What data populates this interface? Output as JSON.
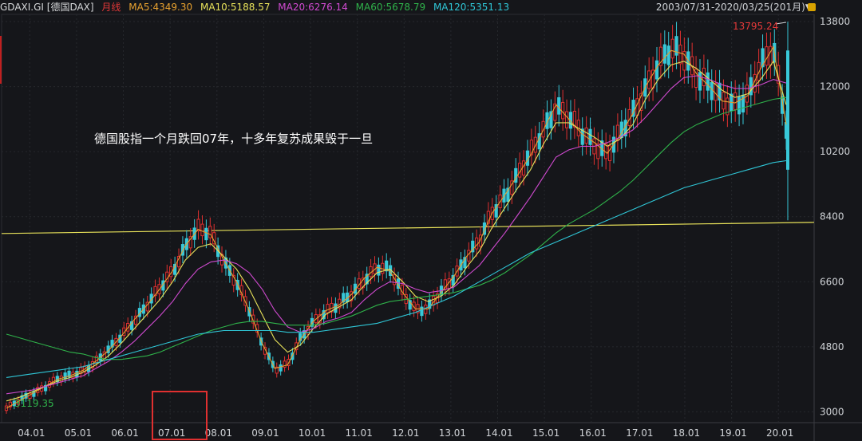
{
  "header": {
    "ticker": "GDAXI.GI [德国DAX]",
    "period": "月线",
    "ma5": "MA5:4349.30",
    "ma10": "MA10:5188.57",
    "ma20": "MA20:6276.14",
    "ma60": "MA60:5678.79",
    "ma120": "MA120:5351.13",
    "range": "2003/07/31-2020/03/25(201月)▼",
    "colors": {
      "ticker": "#d6d8da",
      "period": "#e03838",
      "ma5": "#e7a02f",
      "ma10": "#e8e25a",
      "ma20": "#d04ad0",
      "ma60": "#2fb24a",
      "ma120": "#2fc6d6"
    }
  },
  "annotation": "德国股指一个月跌回07年，十多年复苏成果毁于一旦",
  "high_label": "13795.24",
  "low_label": "3119.35",
  "chart_data": {
    "type": "candlestick",
    "ylim": [
      2700,
      14000
    ],
    "yticks": [
      3000,
      4800,
      6600,
      8400,
      10200,
      12000,
      13800
    ],
    "ytick_labels": [
      "3000",
      "4800",
      "6600",
      "8400",
      "10200",
      "12000",
      "13800"
    ],
    "xtick_labels": [
      "04.01",
      "05.01",
      "06.01",
      "07.01",
      "08.01",
      "09.01",
      "10.01",
      "11.01",
      "12.01",
      "13.01",
      "14.01",
      "15.01",
      "16.01",
      "17.01",
      "18.01",
      "19.01",
      "20.01"
    ],
    "x_start": "2003-07",
    "horizontal_line": {
      "value": 8200,
      "color": "#e8e25a"
    },
    "colors": {
      "up": "#e03030",
      "down": "#38c8d8"
    },
    "series": [
      {
        "name": "MA5",
        "color": "#e7a02f",
        "values": [
          3100,
          3300,
          3500,
          3700,
          3900,
          4000,
          4150,
          4400,
          4700,
          5100,
          5550,
          5950,
          6400,
          6900,
          7600,
          8050,
          7900,
          7200,
          6600,
          5800,
          4900,
          4200,
          4300,
          5000,
          5500,
          5800,
          5950,
          6250,
          6700,
          7000,
          6900,
          6300,
          5850,
          5850,
          6300,
          6750,
          7300,
          7700,
          8500,
          9000,
          9550,
          10100,
          10800,
          11500,
          11100,
          10700,
          10450,
          10150,
          10650,
          11250,
          12000,
          12600,
          13000,
          12900,
          12350,
          12000,
          11600,
          11550,
          11750,
          12500,
          13100,
          10950
        ]
      },
      {
        "name": "MA10",
        "color": "#e8e25a",
        "values": [
          3300,
          3400,
          3550,
          3700,
          3850,
          3950,
          4100,
          4300,
          4550,
          4900,
          5300,
          5700,
          6100,
          6600,
          7200,
          7550,
          7650,
          7300,
          6950,
          6400,
          5700,
          5000,
          4650,
          4850,
          5300,
          5700,
          5900,
          6100,
          6500,
          6850,
          6950,
          6600,
          6200,
          6050,
          6200,
          6500,
          7000,
          7450,
          8100,
          8650,
          9200,
          9700,
          10400,
          11000,
          11000,
          10800,
          10600,
          10350,
          10550,
          10950,
          11650,
          12200,
          12600,
          12700,
          12500,
          12200,
          11900,
          11700,
          11800,
          12200,
          12700,
          11500
        ]
      },
      {
        "name": "MA20",
        "color": "#d04ad0",
        "values": [
          3500,
          3550,
          3600,
          3700,
          3800,
          3900,
          4000,
          4200,
          4400,
          4650,
          4950,
          5300,
          5650,
          6050,
          6550,
          6950,
          7150,
          7200,
          7100,
          6850,
          6400,
          5800,
          5350,
          5200,
          5300,
          5500,
          5600,
          5750,
          6100,
          6400,
          6600,
          6550,
          6400,
          6300,
          6350,
          6450,
          6750,
          7050,
          7500,
          7950,
          8450,
          8950,
          9500,
          10050,
          10250,
          10350,
          10350,
          10450,
          10600,
          10800,
          11150,
          11550,
          11950,
          12250,
          12300,
          12200,
          12050,
          11950,
          11950,
          12050,
          12200,
          12100
        ]
      },
      {
        "name": "MA60",
        "color": "#2fb24a",
        "values": [
          5150,
          5050,
          4950,
          4850,
          4750,
          4650,
          4600,
          4500,
          4450,
          4450,
          4500,
          4550,
          4650,
          4800,
          4950,
          5100,
          5250,
          5350,
          5450,
          5500,
          5500,
          5450,
          5400,
          5400,
          5400,
          5450,
          5550,
          5650,
          5800,
          5950,
          6050,
          6100,
          6150,
          6200,
          6250,
          6300,
          6400,
          6500,
          6650,
          6850,
          7100,
          7350,
          7650,
          7950,
          8200,
          8400,
          8600,
          8850,
          9100,
          9400,
          9750,
          10100,
          10450,
          10750,
          10950,
          11100,
          11250,
          11350,
          11450,
          11550,
          11650,
          11700
        ]
      },
      {
        "name": "MA120",
        "color": "#2fc6d6",
        "values": [
          3950,
          4000,
          4050,
          4100,
          4150,
          4200,
          4250,
          4350,
          4450,
          4550,
          4650,
          4750,
          4850,
          4950,
          5050,
          5150,
          5200,
          5250,
          5250,
          5250,
          5250,
          5250,
          5200,
          5200,
          5200,
          5250,
          5300,
          5350,
          5400,
          5450,
          5550,
          5650,
          5750,
          5900,
          6050,
          6200,
          6400,
          6600,
          6800,
          7000,
          7200,
          7400,
          7550,
          7700,
          7850,
          8000,
          8150,
          8300,
          8450,
          8600,
          8750,
          8900,
          9050,
          9200,
          9300,
          9400,
          9500,
          9600,
          9700,
          9800,
          9900,
          9950
        ]
      }
    ]
  }
}
